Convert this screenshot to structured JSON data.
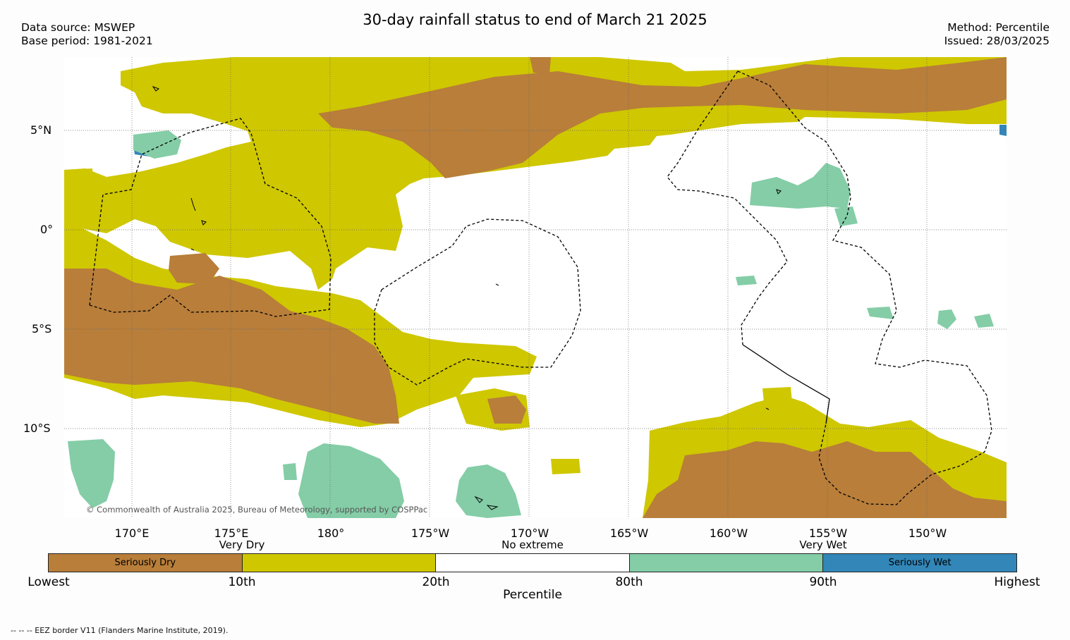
{
  "header": {
    "title": "30-day rainfall status to end of March 21 2025",
    "data_source": "Data source: MSWEP",
    "base_period": "Base period: 1981-2021",
    "method": "Method: Percentile",
    "issued": "Issued: 28/03/2025"
  },
  "map": {
    "lat_labels": [
      "5°N",
      "0°",
      "5°S",
      "10°S"
    ],
    "lon_labels": [
      "170°E",
      "175°E",
      "180°",
      "175°W",
      "170°W",
      "165°W",
      "160°W",
      "155°W",
      "150°W"
    ],
    "copyright": "© Commonwealth of Australia 2025, Bureau of Meteorology, supported by COSPPac",
    "colors": {
      "seriously_dry": "#b87e3a",
      "very_dry": "#cfc700",
      "no_extreme": "#ffffff",
      "very_wet": "#84cda7",
      "seriously_wet": "#3286b8"
    }
  },
  "legend": {
    "categories": [
      "Very Dry",
      "No extreme",
      "Very Wet"
    ],
    "segment_labels": [
      "Seriously Dry",
      "",
      "",
      "",
      "Seriously Wet"
    ],
    "ticks": [
      "Lowest",
      "10th",
      "20th",
      "80th",
      "90th",
      "Highest"
    ],
    "title": "Percentile",
    "colors": [
      "#b87e3a",
      "#cfc700",
      "#ffffff",
      "#84cda7",
      "#3286b8"
    ]
  },
  "footer": {
    "eez_note": "--  --  -- EEZ border V11 (Flanders Marine Institute, 2019)."
  }
}
